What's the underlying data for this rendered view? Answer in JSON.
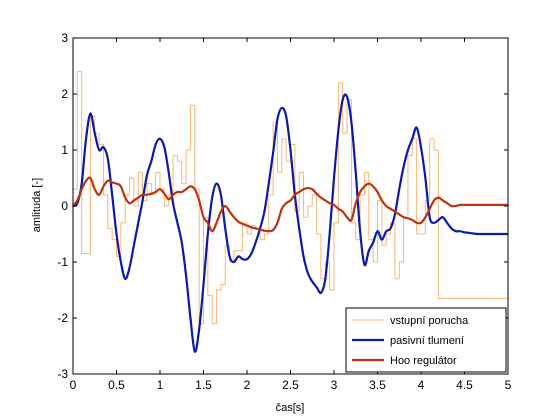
{
  "chart_data": {
    "type": "line",
    "xlabel": "čas[s]",
    "ylabel": "amlituda [-]",
    "xlim": [
      0,
      5
    ],
    "ylim": [
      -3,
      3
    ],
    "xticks": [
      0,
      0.5,
      1,
      1.5,
      2,
      2.5,
      3,
      3.5,
      4,
      4.5,
      5
    ],
    "yticks": [
      -3,
      -2,
      -1,
      0,
      1,
      2,
      3
    ],
    "xtick_labels": [
      "0",
      "0.5",
      "1",
      "1.5",
      "2",
      "2.5",
      "3",
      "3.5",
      "4",
      "4.5",
      "5"
    ],
    "ytick_labels": [
      "-3",
      "-2",
      "-1",
      "0",
      "1",
      "2",
      "3"
    ],
    "grid": false,
    "legend_position": "bottom-right",
    "series": [
      {
        "name": "vstupní porucha",
        "color": "#f5b87a",
        "style": "steps",
        "x": [
          0,
          0.05,
          0.1,
          0.2,
          0.25,
          0.3,
          0.35,
          0.4,
          0.45,
          0.5,
          0.55,
          0.6,
          0.65,
          0.7,
          0.75,
          0.8,
          0.85,
          0.9,
          0.95,
          1.0,
          1.05,
          1.1,
          1.15,
          1.2,
          1.25,
          1.3,
          1.35,
          1.4,
          1.45,
          1.5,
          1.55,
          1.6,
          1.65,
          1.7,
          1.75,
          1.8,
          1.85,
          1.9,
          1.95,
          2.0,
          2.05,
          2.1,
          2.15,
          2.2,
          2.25,
          2.3,
          2.35,
          2.4,
          2.45,
          2.5,
          2.55,
          2.6,
          2.65,
          2.7,
          2.75,
          2.8,
          2.85,
          2.9,
          2.95,
          3.0,
          3.05,
          3.1,
          3.15,
          3.2,
          3.25,
          3.3,
          3.35,
          3.4,
          3.45,
          3.5,
          3.55,
          3.6,
          3.65,
          3.7,
          3.75,
          3.8,
          3.85,
          3.9,
          3.95,
          4.0,
          4.05,
          4.1,
          4.15,
          4.2,
          4.25,
          4.3,
          4.35,
          4.4,
          4.45,
          4.5,
          4.55,
          4.6,
          4.65,
          4.7,
          4.75,
          4.8,
          4.85,
          4.9,
          4.95
        ],
        "values": [
          0.3,
          2.4,
          -0.85,
          1.6,
          1.3,
          1.1,
          0.2,
          -0.4,
          -0.6,
          -0.9,
          -0.3,
          0.2,
          0.5,
          0.0,
          0.6,
          0.1,
          0.4,
          0.2,
          0.6,
          0.3,
          0.0,
          0.2,
          0.9,
          0.8,
          0.4,
          1.0,
          1.8,
          0.3,
          -2.1,
          -0.2,
          -1.6,
          -2.1,
          -1.5,
          -1.4,
          -0.7,
          -1.0,
          -0.8,
          -0.8,
          -0.3,
          -0.5,
          -0.35,
          -0.4,
          -0.6,
          -0.5,
          0.2,
          1.5,
          0.6,
          1.2,
          0.8,
          1.1,
          -0.1,
          0.6,
          -0.2,
          0.0,
          0.2,
          -0.5,
          -1.3,
          -1.0,
          -1.5,
          -0.3,
          2.2,
          1.3,
          1.9,
          -0.3,
          -0.6,
          0.2,
          0.6,
          -0.6,
          -1.0,
          0.1,
          -0.7,
          -0.5,
          -0.3,
          -1.3,
          -1.0,
          -0.2,
          0.9,
          1.2,
          -0.5,
          -0.5,
          0.1,
          1.2,
          1.0,
          -1.65,
          -1.65,
          -1.65,
          -1.65,
          -1.65,
          -1.65,
          -1.65,
          -1.65,
          -1.65,
          -1.65,
          -1.65,
          -1.65,
          -1.65,
          -1.65,
          -1.65,
          -1.65
        ]
      },
      {
        "name": "pasivní tlumení",
        "color": "#0a1aa8",
        "style": "smooth",
        "x": [
          0,
          0.05,
          0.1,
          0.15,
          0.2,
          0.25,
          0.3,
          0.35,
          0.4,
          0.45,
          0.5,
          0.55,
          0.6,
          0.65,
          0.7,
          0.75,
          0.8,
          0.85,
          0.9,
          0.95,
          1.0,
          1.05,
          1.1,
          1.15,
          1.2,
          1.25,
          1.3,
          1.35,
          1.4,
          1.45,
          1.5,
          1.55,
          1.6,
          1.65,
          1.7,
          1.75,
          1.8,
          1.85,
          1.9,
          1.95,
          2.0,
          2.05,
          2.1,
          2.15,
          2.2,
          2.25,
          2.3,
          2.35,
          2.4,
          2.45,
          2.5,
          2.55,
          2.6,
          2.65,
          2.7,
          2.75,
          2.8,
          2.85,
          2.9,
          2.95,
          3.0,
          3.05,
          3.1,
          3.15,
          3.2,
          3.25,
          3.3,
          3.35,
          3.4,
          3.45,
          3.5,
          3.55,
          3.6,
          3.65,
          3.7,
          3.75,
          3.8,
          3.85,
          3.9,
          3.95,
          4.0,
          4.05,
          4.1,
          4.15,
          4.2,
          4.25,
          4.3,
          4.35,
          4.4,
          4.45,
          4.5,
          4.55,
          4.6,
          4.65,
          4.7,
          4.75,
          4.8,
          4.85,
          4.9,
          4.95,
          5.0
        ],
        "values": [
          0.0,
          0.05,
          0.4,
          1.2,
          1.65,
          1.3,
          1.0,
          1.05,
          0.85,
          0.2,
          -0.5,
          -1.0,
          -1.3,
          -1.1,
          -0.7,
          -0.3,
          0.1,
          0.55,
          0.8,
          1.1,
          1.2,
          1.05,
          0.6,
          0.05,
          -0.3,
          -0.65,
          -1.25,
          -2.0,
          -2.6,
          -2.2,
          -1.4,
          -0.5,
          0.15,
          0.4,
          0.2,
          -0.4,
          -0.9,
          -1.0,
          -0.9,
          -0.95,
          -0.95,
          -0.85,
          -0.65,
          -0.4,
          -0.1,
          0.4,
          0.95,
          1.55,
          1.75,
          1.6,
          1.0,
          0.2,
          -0.4,
          -0.9,
          -1.2,
          -1.35,
          -1.45,
          -1.55,
          -1.3,
          -0.5,
          0.5,
          1.35,
          1.9,
          1.95,
          1.5,
          0.6,
          -0.45,
          -1.05,
          -0.8,
          -0.65,
          -0.45,
          -0.6,
          -0.45,
          -0.4,
          -0.15,
          0.3,
          0.7,
          1.0,
          1.2,
          1.4,
          1.05,
          0.5,
          -0.2,
          -0.3,
          -0.25,
          -0.2,
          -0.3,
          -0.4,
          -0.45,
          -0.45,
          -0.47,
          -0.48,
          -0.49,
          -0.5,
          -0.5,
          -0.5,
          -0.5,
          -0.5,
          -0.5,
          -0.5,
          -0.5
        ]
      },
      {
        "name": "Hoo regulátor",
        "color": "#c0320e",
        "style": "smooth",
        "x": [
          0,
          0.05,
          0.1,
          0.15,
          0.2,
          0.25,
          0.3,
          0.35,
          0.4,
          0.45,
          0.5,
          0.55,
          0.6,
          0.65,
          0.7,
          0.75,
          0.8,
          0.85,
          0.9,
          0.95,
          1.0,
          1.05,
          1.1,
          1.15,
          1.2,
          1.25,
          1.3,
          1.35,
          1.4,
          1.45,
          1.5,
          1.55,
          1.6,
          1.65,
          1.7,
          1.75,
          1.8,
          1.85,
          1.9,
          1.95,
          2.0,
          2.05,
          2.1,
          2.15,
          2.2,
          2.25,
          2.3,
          2.35,
          2.4,
          2.45,
          2.5,
          2.55,
          2.6,
          2.65,
          2.7,
          2.75,
          2.8,
          2.85,
          2.9,
          2.95,
          3.0,
          3.05,
          3.1,
          3.15,
          3.2,
          3.25,
          3.3,
          3.35,
          3.4,
          3.45,
          3.5,
          3.55,
          3.6,
          3.65,
          3.7,
          3.75,
          3.8,
          3.85,
          3.9,
          3.95,
          4.0,
          4.05,
          4.1,
          4.15,
          4.2,
          4.25,
          4.3,
          4.35,
          4.4,
          4.45,
          4.5,
          4.55,
          4.6,
          4.65,
          4.7,
          4.75,
          4.8,
          4.85,
          4.9,
          4.95,
          5.0
        ],
        "values": [
          0.0,
          0.1,
          0.3,
          0.45,
          0.5,
          0.3,
          0.2,
          0.35,
          0.45,
          0.42,
          0.4,
          0.35,
          0.15,
          0.05,
          0.1,
          0.15,
          0.2,
          0.2,
          0.22,
          0.25,
          0.3,
          0.22,
          0.12,
          0.2,
          0.25,
          0.25,
          0.3,
          0.35,
          0.3,
          0.1,
          -0.2,
          -0.3,
          -0.45,
          -0.3,
          -0.1,
          0.0,
          -0.1,
          -0.2,
          -0.28,
          -0.32,
          -0.35,
          -0.38,
          -0.4,
          -0.42,
          -0.44,
          -0.45,
          -0.43,
          -0.3,
          -0.05,
          0.05,
          0.1,
          0.2,
          0.25,
          0.3,
          0.32,
          0.3,
          0.22,
          0.15,
          0.1,
          0.05,
          0.02,
          -0.05,
          -0.1,
          -0.2,
          -0.25,
          0.05,
          0.25,
          0.35,
          0.4,
          0.35,
          0.25,
          0.1,
          0.0,
          -0.05,
          -0.1,
          -0.15,
          -0.2,
          -0.22,
          -0.25,
          -0.3,
          -0.3,
          -0.2,
          -0.05,
          0.1,
          0.15,
          0.1,
          0.05,
          0.0,
          0.0,
          0.02,
          0.02,
          0.02,
          0.02,
          0.02,
          0.02,
          0.02,
          0.02,
          0.02,
          0.02,
          0.02,
          0.02
        ]
      }
    ]
  }
}
